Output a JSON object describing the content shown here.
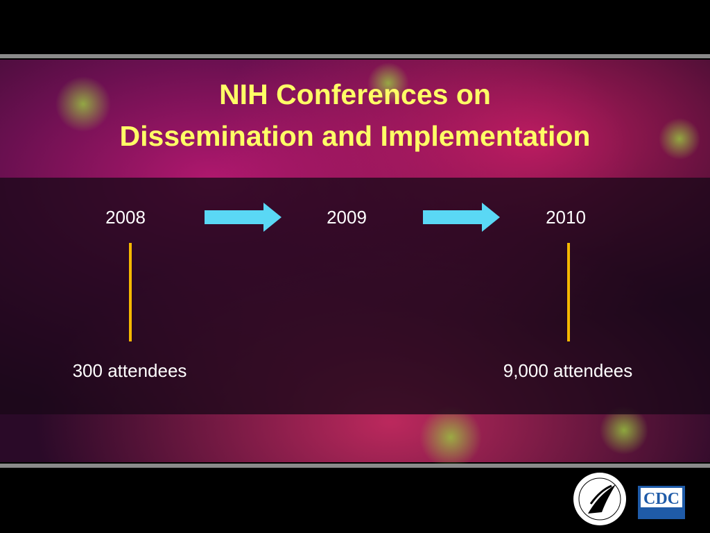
{
  "title": [
    "NIH Conferences on",
    "Dissemination and Implementation"
  ],
  "timeline": [
    {
      "year": "2008",
      "attendees": "300 attendees"
    },
    {
      "year": "2009"
    },
    {
      "year": "2010",
      "attendees": "9,000 attendees"
    }
  ],
  "logos": {
    "cdc": "CDC"
  }
}
